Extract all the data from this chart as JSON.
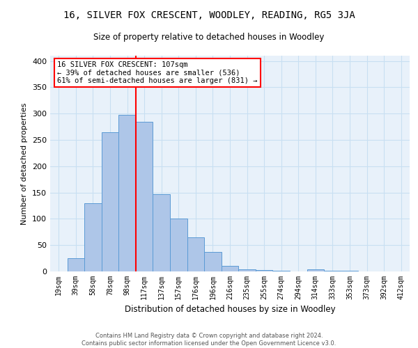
{
  "title": "16, SILVER FOX CRESCENT, WOODLEY, READING, RG5 3JA",
  "subtitle": "Size of property relative to detached houses in Woodley",
  "xlabel": "Distribution of detached houses by size in Woodley",
  "ylabel": "Number of detached properties",
  "footer_line1": "Contains HM Land Registry data © Crown copyright and database right 2024.",
  "footer_line2": "Contains public sector information licensed under the Open Government Licence v3.0.",
  "bin_labels": [
    "19sqm",
    "39sqm",
    "58sqm",
    "78sqm",
    "98sqm",
    "117sqm",
    "137sqm",
    "157sqm",
    "176sqm",
    "196sqm",
    "216sqm",
    "235sqm",
    "255sqm",
    "274sqm",
    "294sqm",
    "314sqm",
    "333sqm",
    "353sqm",
    "373sqm",
    "392sqm",
    "412sqm"
  ],
  "bar_values": [
    0,
    25,
    130,
    265,
    298,
    285,
    147,
    100,
    65,
    37,
    10,
    4,
    2,
    1,
    0,
    4,
    1,
    1,
    0,
    0,
    0
  ],
  "bar_color": "#aec6e8",
  "bar_edge_color": "#5b9bd5",
  "grid_color": "#c8dff2",
  "background_color": "#e8f1fa",
  "vline_color": "red",
  "annotation_text": "16 SILVER FOX CRESCENT: 107sqm\n← 39% of detached houses are smaller (536)\n61% of semi-detached houses are larger (831) →",
  "annotation_box_color": "white",
  "annotation_box_edge": "red",
  "ylim": [
    0,
    410
  ],
  "yticks": [
    0,
    50,
    100,
    150,
    200,
    250,
    300,
    350,
    400
  ],
  "vline_pos": 4.5
}
